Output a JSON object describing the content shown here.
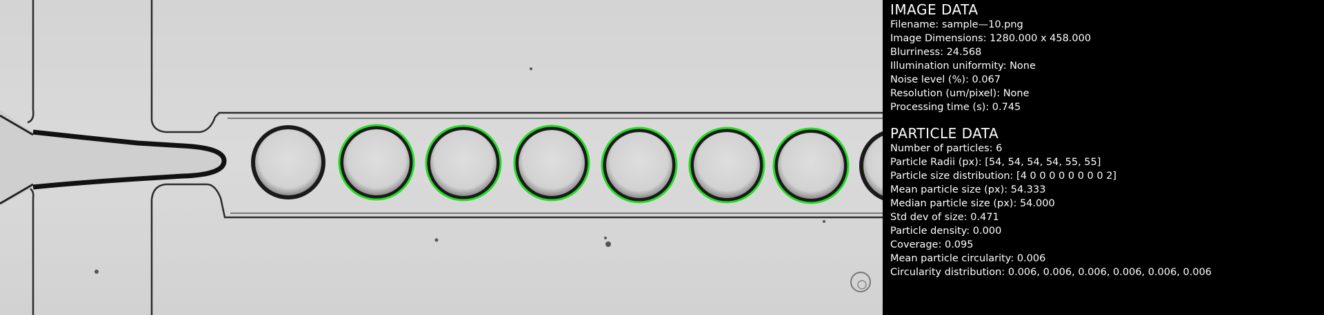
{
  "image_panel": {
    "title": "IMAGE DATA",
    "lines": [
      "Filename: sample—10.png",
      "Image Dimensions: 1280.000 x 458.000",
      "Blurriness: 24.568",
      "Illumination uniformity: None",
      "Noise level (%): 0.067",
      "Resolution (um/pixel): None",
      "Processing time (s): 0.745"
    ]
  },
  "particle_panel": {
    "title": "PARTICLE DATA",
    "lines": [
      "Number of particles: 6",
      "Particle Radii (px): [54, 54, 54, 54, 55, 55]",
      "Particle size distribution: [4 0 0 0 0 0 0 0 0 2]",
      "Mean particle size (px): 54.333",
      "Median particle size (px): 54.000",
      "Std dev of size: 0.471",
      "Particle density: 0.000",
      "Coverage: 0.095",
      "Mean particle circularity: 0.006",
      "Circularity distribution: 0.006, 0.006, 0.006, 0.006, 0.006, 0.006"
    ]
  },
  "colors": {
    "detection_circle": "#22dd22",
    "background": "#d9d9d9",
    "panel_bg": "#000000"
  }
}
